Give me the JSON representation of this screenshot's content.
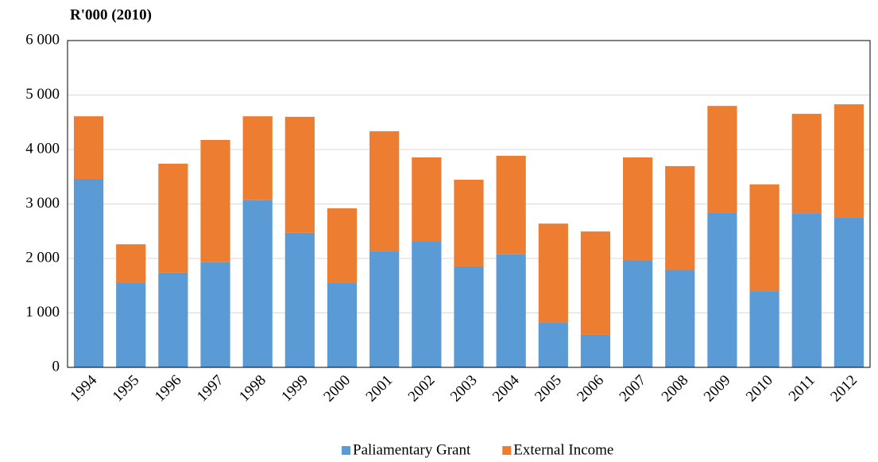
{
  "chart_data": {
    "type": "stacked_bar",
    "title": "R'000 (2010)",
    "categories": [
      "1994",
      "1995",
      "1996",
      "1997",
      "1998",
      "1999",
      "2000",
      "2001",
      "2002",
      "2003",
      "2004",
      "2005",
      "2006",
      "2007",
      "2008",
      "2009",
      "2010",
      "2011",
      "2012"
    ],
    "series": [
      {
        "name": "Paliamentary Grant",
        "color": "#5b9bd5",
        "values": [
          3460,
          1560,
          1740,
          1930,
          3070,
          2470,
          1560,
          2130,
          2320,
          1855,
          2075,
          830,
          600,
          1970,
          1795,
          2845,
          1400,
          2830,
          2745
        ]
      },
      {
        "name": "External Income",
        "color": "#ed7d31",
        "values": [
          1150,
          700,
          2000,
          2245,
          1540,
          2130,
          1360,
          2205,
          1535,
          1590,
          1810,
          1810,
          1895,
          1885,
          1900,
          1955,
          1960,
          1825,
          2085
        ]
      }
    ],
    "ylim": [
      0,
      6000
    ],
    "yticks": [
      0,
      {
        "value": 1000,
        "label": "1 000"
      },
      {
        "value": 2000,
        "label": "2 000"
      },
      {
        "value": 3000,
        "label": "3 000"
      },
      {
        "value": 4000,
        "label": "4 000"
      },
      {
        "value": 5000,
        "label": "5 000"
      },
      {
        "value": 6000,
        "label": "6 000"
      }
    ],
    "grid": true,
    "legend": "bottom"
  }
}
